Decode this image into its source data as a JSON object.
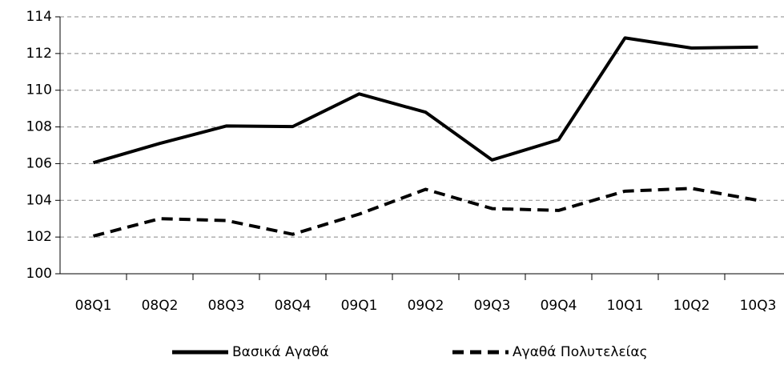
{
  "chart_data": {
    "type": "line",
    "categories": [
      "08Q1",
      "08Q2",
      "08Q3",
      "08Q4",
      "09Q1",
      "09Q2",
      "09Q3",
      "09Q4",
      "10Q1",
      "10Q2",
      "10Q3"
    ],
    "series": [
      {
        "name": "Βασικά Αγαθά",
        "color": "#000000",
        "line_style": "solid",
        "values": [
          106.05,
          107.1,
          108.05,
          108.02,
          109.8,
          108.8,
          106.2,
          107.3,
          112.85,
          112.3,
          112.35
        ]
      },
      {
        "name": "Αγαθά Πολυτελείας",
        "color": "#000000",
        "line_style": "dashed",
        "values": [
          102.05,
          103.0,
          102.9,
          102.15,
          103.25,
          104.6,
          103.55,
          103.45,
          104.5,
          104.65,
          104.0
        ]
      }
    ],
    "ylim": [
      100,
      114
    ],
    "yticks": [
      100,
      102,
      104,
      106,
      108,
      110,
      112,
      114
    ],
    "grid": true,
    "legend": "bottom"
  }
}
